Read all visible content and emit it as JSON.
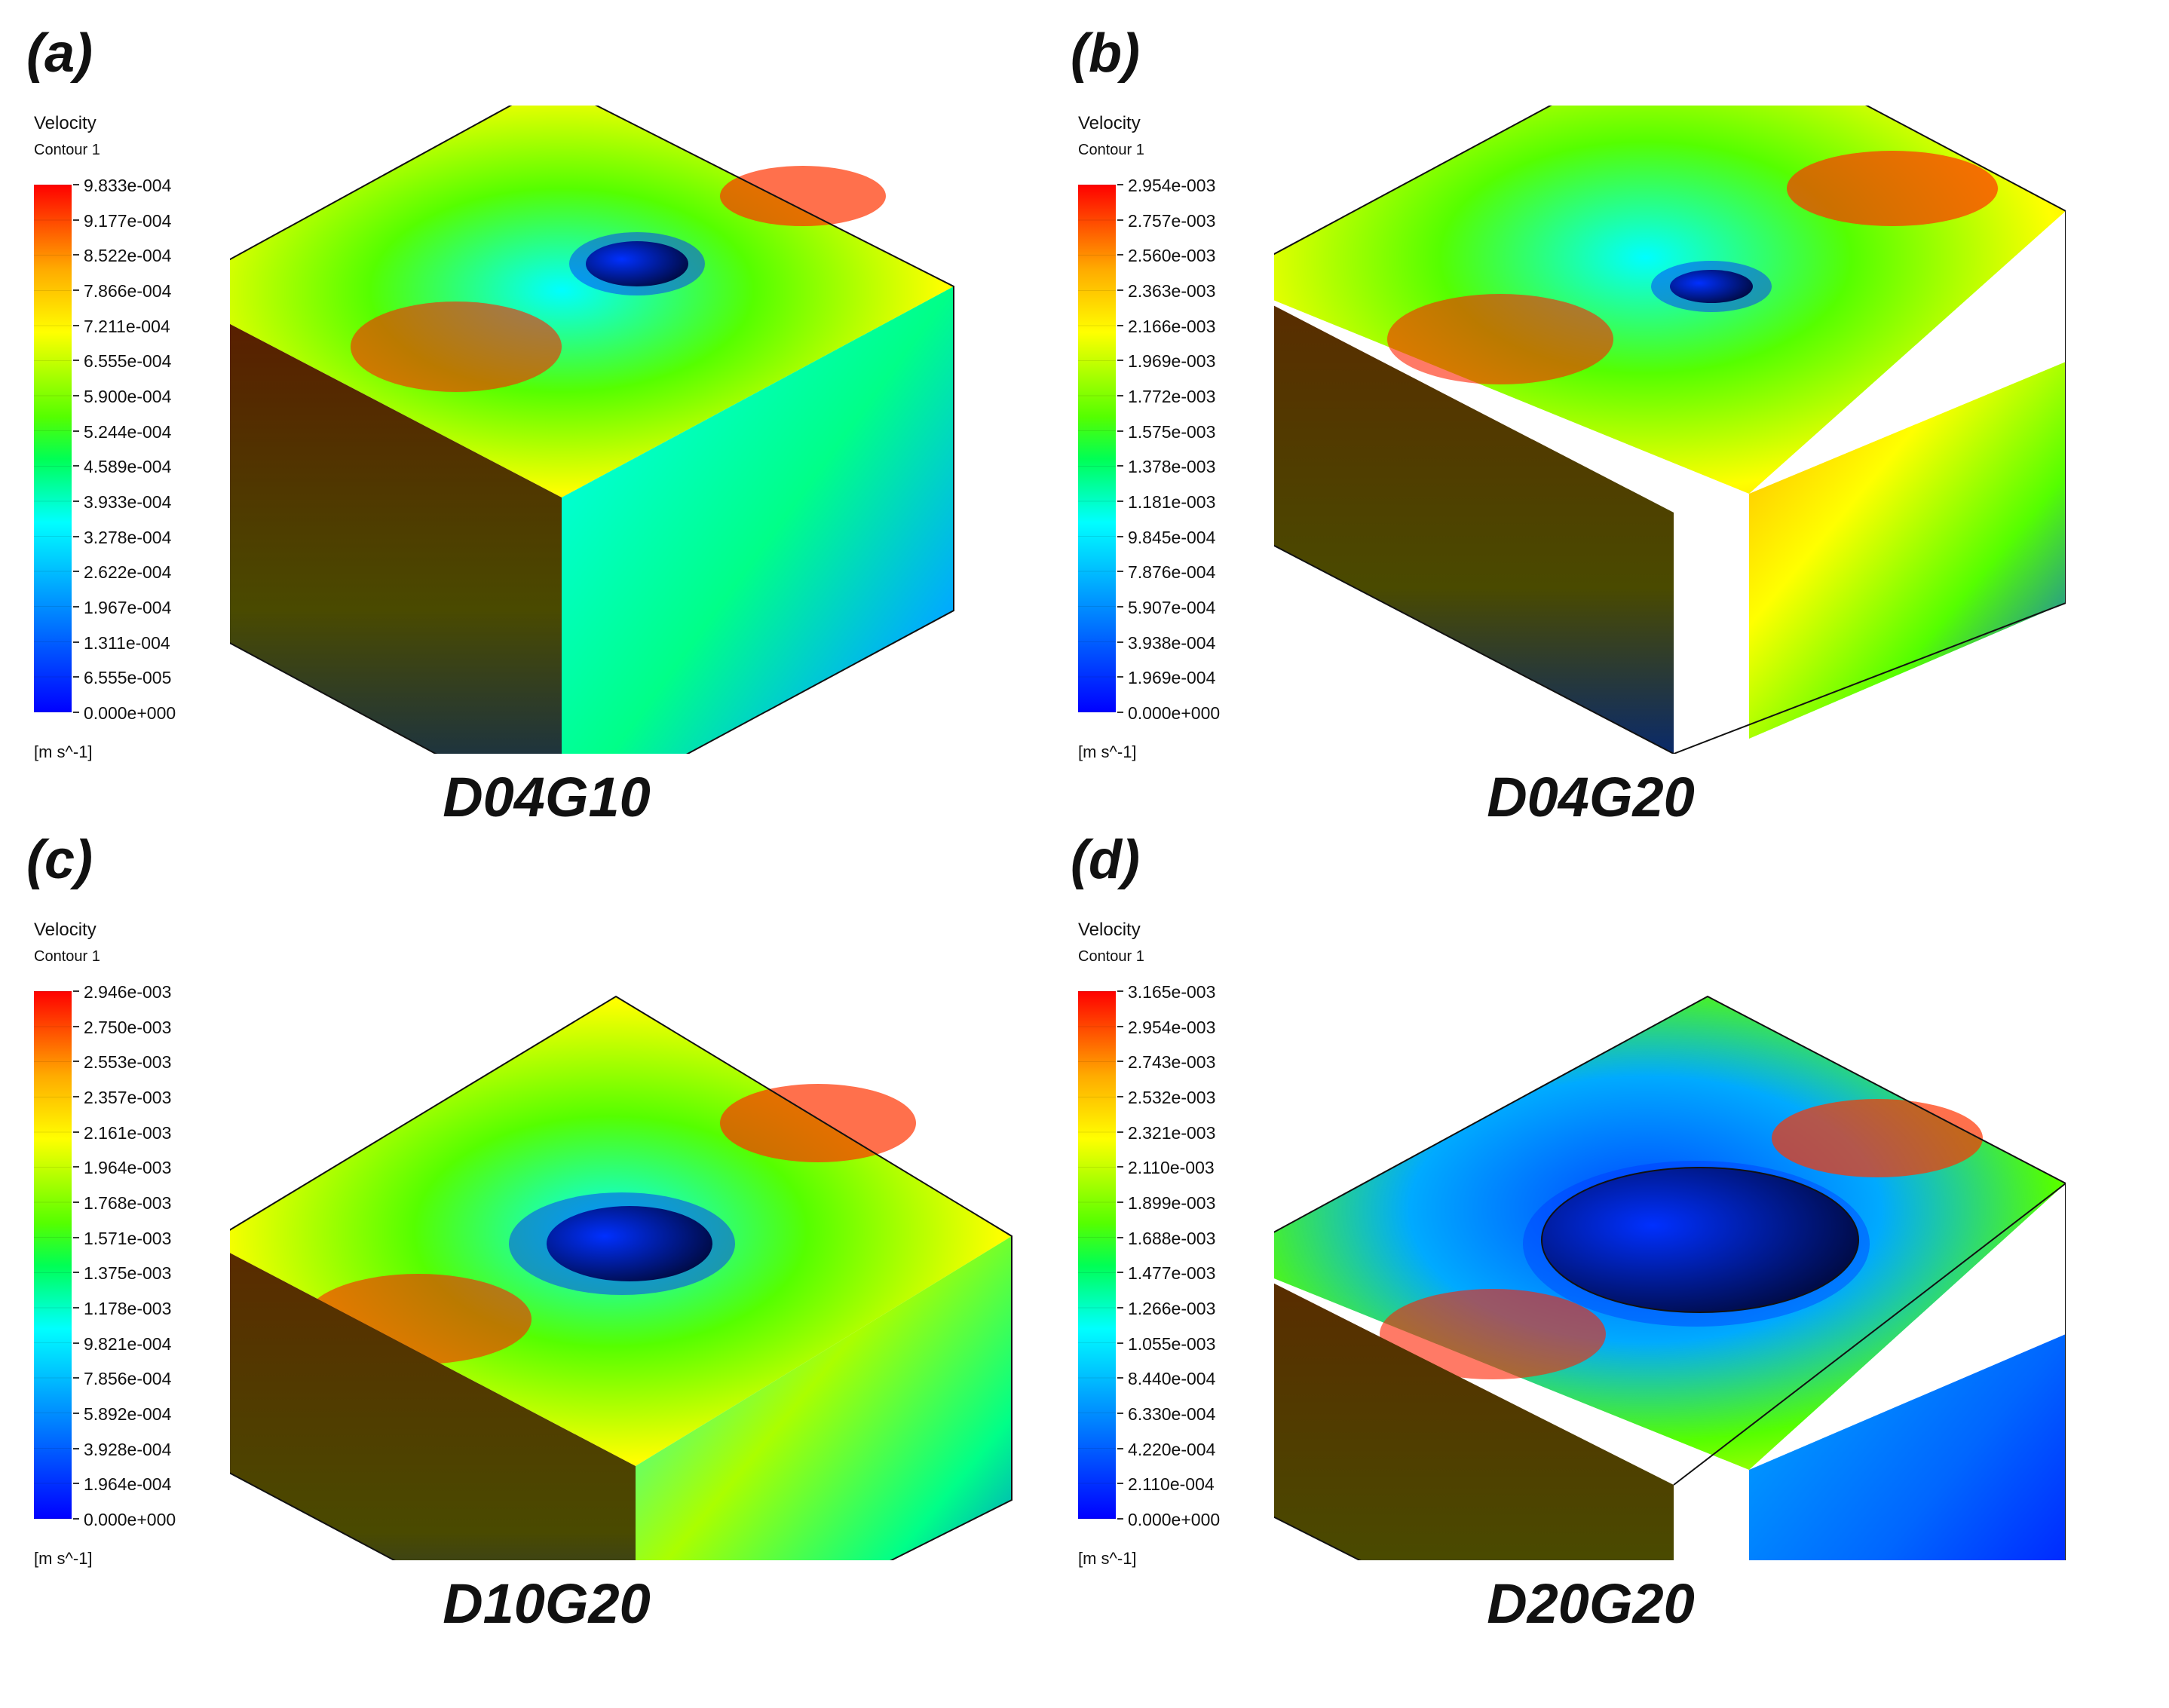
{
  "colors": {
    "scale": [
      "#0000ff",
      "#0055ff",
      "#00aaff",
      "#00ffff",
      "#00ff55",
      "#55ff00",
      "#aaff00",
      "#ffff00",
      "#ffaa00",
      "#ff5500",
      "#ff0000"
    ],
    "outline": "#111111"
  },
  "panels": [
    {
      "label": "(a)",
      "case": "D04G10",
      "legend": {
        "title": "Velocity",
        "subtitle": "Contour 1",
        "unit": "[m s^-1]",
        "ticks": [
          "9.833e-004",
          "9.177e-004",
          "8.522e-004",
          "7.866e-004",
          "7.211e-004",
          "6.555e-004",
          "5.900e-004",
          "5.244e-004",
          "4.589e-004",
          "3.933e-004",
          "3.278e-004",
          "2.622e-004",
          "1.967e-004",
          "1.311e-004",
          "6.555e-005",
          "0.000e+000"
        ]
      }
    },
    {
      "label": "(b)",
      "case": "D04G20",
      "legend": {
        "title": "Velocity",
        "subtitle": "Contour 1",
        "unit": "[m s^-1]",
        "ticks": [
          "2.954e-003",
          "2.757e-003",
          "2.560e-003",
          "2.363e-003",
          "2.166e-003",
          "1.969e-003",
          "1.772e-003",
          "1.575e-003",
          "1.378e-003",
          "1.181e-003",
          "9.845e-004",
          "7.876e-004",
          "5.907e-004",
          "3.938e-004",
          "1.969e-004",
          "0.000e+000"
        ]
      }
    },
    {
      "label": "(c)",
      "case": "D10G20",
      "legend": {
        "title": "Velocity",
        "subtitle": "Contour 1",
        "unit": "[m s^-1]",
        "ticks": [
          "2.946e-003",
          "2.750e-003",
          "2.553e-003",
          "2.357e-003",
          "2.161e-003",
          "1.964e-003",
          "1.768e-003",
          "1.571e-003",
          "1.375e-003",
          "1.178e-003",
          "9.821e-004",
          "7.856e-004",
          "5.892e-004",
          "3.928e-004",
          "1.964e-004",
          "0.000e+000"
        ]
      }
    },
    {
      "label": "(d)",
      "case": "D20G20",
      "legend": {
        "title": "Velocity",
        "subtitle": "Contour 1",
        "unit": "[m s^-1]",
        "ticks": [
          "3.165e-003",
          "2.954e-003",
          "2.743e-003",
          "2.532e-003",
          "2.321e-003",
          "2.110e-003",
          "1.899e-003",
          "1.688e-003",
          "1.477e-003",
          "1.266e-003",
          "1.055e-003",
          "8.440e-004",
          "6.330e-004",
          "4.220e-004",
          "2.110e-004",
          "0.000e+000"
        ]
      }
    }
  ]
}
